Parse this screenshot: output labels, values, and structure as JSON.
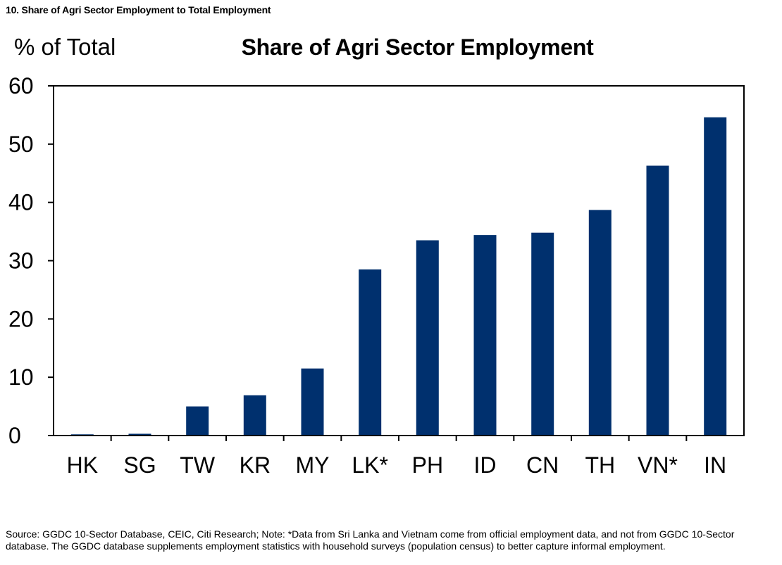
{
  "figure_label": "10. Share of Agri Sector Employment to Total Employment",
  "source_note": "Source: GGDC 10-Sector Database, CEIC, Citi Research; Note: *Data from Sri Lanka and Vietnam come from official employment data, and not from GGDC 10-Sector database. The GGDC database supplements employment statistics with household surveys (population census) to better capture informal employment.",
  "colors": {
    "bar": "#00306e",
    "axis": "#000000"
  },
  "chart_data": {
    "type": "bar",
    "title": "Share of  Agri Sector Employment",
    "ylabel": "% of Total",
    "xlabel": "",
    "categories": [
      "HK",
      "SG",
      "TW",
      "KR",
      "MY",
      "LK*",
      "PH",
      "ID",
      "CN",
      "TH",
      "VN*",
      "IN"
    ],
    "values": [
      0.2,
      0.3,
      5.0,
      6.9,
      11.5,
      28.5,
      33.5,
      34.4,
      34.8,
      38.7,
      46.3,
      54.6
    ],
    "ylim": [
      0,
      60
    ],
    "yticks": [
      0,
      10,
      20,
      30,
      40,
      50,
      60
    ],
    "grid": false,
    "legend": "none"
  }
}
